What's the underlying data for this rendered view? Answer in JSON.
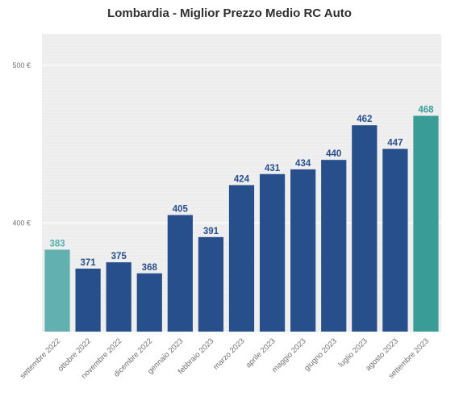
{
  "chart_data": {
    "type": "bar",
    "title": "Lombardia - Miglior Prezzo Medio RC Auto",
    "xlabel": "",
    "ylabel": "",
    "ylim": [
      331,
      520
    ],
    "yticks": [
      400,
      500
    ],
    "ytick_labels": [
      "400 €",
      "500 €"
    ],
    "grid": true,
    "categories": [
      "settembre 2022",
      "ottobre 2022",
      "novembre 2022",
      "dicembre 2022",
      "gennaio 2023",
      "febbraio 2023",
      "marzo 2023",
      "aprile 2023",
      "maggio 2023",
      "giugno 2023",
      "luglio 2023",
      "agosto 2023",
      "settembre 2023"
    ],
    "values": [
      383,
      371,
      375,
      368,
      405,
      391,
      424,
      431,
      434,
      440,
      462,
      447,
      468
    ],
    "value_labels": [
      "383",
      "371",
      "375",
      "368",
      "405",
      "391",
      "424",
      "431",
      "434",
      "440",
      "462",
      "447",
      "468"
    ],
    "colors": {
      "first": "#62b1b0",
      "last": "#3a9c97",
      "default": "#264f8c",
      "label_default": "#264f8c",
      "label_first": "#55aeab",
      "label_last": "#3a9c97"
    }
  }
}
